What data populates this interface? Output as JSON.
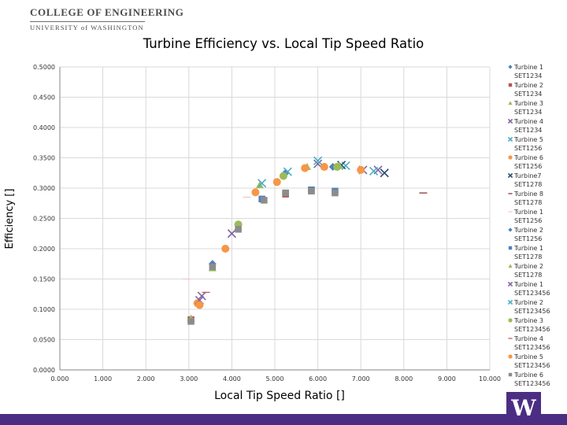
{
  "header": {
    "college": "COLLEGE OF ENGINEERING",
    "university": "UNIVERSITY of WASHINGTON"
  },
  "badge": {
    "letter": "W"
  },
  "chart_data": {
    "type": "scatter",
    "title": "Turbine Efficiency vs. Local Tip Speed Ratio",
    "xlabel": "Local Tip Speed Ratio []",
    "ylabel": "Efficiency []",
    "xlim": [
      0,
      10
    ],
    "ylim": [
      0,
      0.5
    ],
    "x_ticks": [
      "0.000",
      "1.000",
      "2.000",
      "3.000",
      "4.000",
      "5.000",
      "6.000",
      "7.000",
      "8.000",
      "9.000",
      "10.000"
    ],
    "y_ticks": [
      "0.0000",
      "0.0500",
      "0.1000",
      "0.1500",
      "0.2000",
      "0.2500",
      "0.3000",
      "0.3500",
      "0.4000",
      "0.4500",
      "0.5000"
    ],
    "grid": true,
    "legend_position": "right",
    "series": [
      {
        "name": "Turbine 1 SET1234",
        "color": "#4f81bd",
        "marker": "diamond",
        "points": [
          [
            4.15,
            0.24
          ],
          [
            5.25,
            0.325
          ],
          [
            6.35,
            0.335
          ]
        ]
      },
      {
        "name": "Turbine 2 SET1234",
        "color": "#c0504d",
        "marker": "square",
        "points": [
          [
            3.05,
            0.083
          ],
          [
            5.25,
            0.29
          ],
          [
            5.85,
            0.297
          ]
        ]
      },
      {
        "name": "Turbine 3 SET1234",
        "color": "#9bbb59",
        "marker": "triangle",
        "points": [
          [
            3.55,
            0.168
          ],
          [
            4.65,
            0.305
          ],
          [
            5.75,
            0.335
          ]
        ]
      },
      {
        "name": "Turbine 4 SET1234",
        "color": "#8064a2",
        "marker": "x",
        "points": [
          [
            3.3,
            0.122
          ],
          [
            4.0,
            0.225
          ],
          [
            6.0,
            0.34
          ],
          [
            7.4,
            0.33
          ]
        ]
      },
      {
        "name": "Turbine 5 SET1256",
        "color": "#4bacc6",
        "marker": "x",
        "points": [
          [
            4.7,
            0.308
          ],
          [
            5.3,
            0.327
          ],
          [
            6.65,
            0.337
          ],
          [
            7.3,
            0.328
          ]
        ]
      },
      {
        "name": "Turbine 6 SET1256",
        "color": "#f79646",
        "marker": "circle",
        "points": [
          [
            3.2,
            0.11
          ],
          [
            5.05,
            0.31
          ],
          [
            6.15,
            0.335
          ]
        ]
      },
      {
        "name": "Turbine7 SET1278",
        "color": "#2c4d75",
        "marker": "x",
        "points": [
          [
            6.55,
            0.338
          ],
          [
            7.55,
            0.325
          ]
        ]
      },
      {
        "name": "Turbine 8 SET1278",
        "color": "#772c2a",
        "marker": "dash",
        "points": [
          [
            8.45,
            0.292
          ]
        ]
      },
      {
        "name": "Turbine 1 SET1256",
        "color": "#f2c4c3",
        "marker": "dash",
        "points": [
          [
            2.95,
            0.15
          ],
          [
            4.35,
            0.285
          ]
        ]
      },
      {
        "name": "Turbine 2 SET1256",
        "color": "#4f81bd",
        "marker": "diamond",
        "points": [
          [
            3.55,
            0.175
          ]
        ]
      },
      {
        "name": "Turbine 1 SET1278",
        "color": "#4f81bd",
        "marker": "square",
        "points": [
          [
            4.7,
            0.282
          ],
          [
            5.25,
            0.292
          ],
          [
            5.85,
            0.297
          ],
          [
            6.4,
            0.295
          ]
        ]
      },
      {
        "name": "Turbine 2 SET1278",
        "color": "#9bbb59",
        "marker": "triangle",
        "points": [
          [
            3.05,
            0.085
          ],
          [
            4.15,
            0.236
          ],
          [
            6.5,
            0.337
          ]
        ]
      },
      {
        "name": "Turbine 1 SET123456",
        "color": "#8064a2",
        "marker": "x",
        "points": [
          [
            3.25,
            0.115
          ],
          [
            7.05,
            0.33
          ]
        ]
      },
      {
        "name": "Turbine 2 SET123456",
        "color": "#4bacc6",
        "marker": "x",
        "points": [
          [
            6.0,
            0.345
          ]
        ]
      },
      {
        "name": "Turbine 3 SET123456",
        "color": "#9bbb59",
        "marker": "circle",
        "points": [
          [
            4.15,
            0.24
          ],
          [
            5.2,
            0.32
          ],
          [
            6.45,
            0.335
          ]
        ]
      },
      {
        "name": "Turbine 4 SET123456",
        "color": "#c0504d",
        "marker": "dash",
        "points": [
          [
            3.4,
            0.128
          ]
        ]
      },
      {
        "name": "Turbine 5 SET123456",
        "color": "#f79646",
        "marker": "circle",
        "points": [
          [
            3.25,
            0.107
          ],
          [
            3.85,
            0.2
          ],
          [
            4.55,
            0.293
          ],
          [
            5.7,
            0.333
          ],
          [
            7.0,
            0.33
          ]
        ]
      },
      {
        "name": "Turbine 6 SET123456",
        "color": "#8c8c8c",
        "marker": "square",
        "points": [
          [
            3.05,
            0.08
          ],
          [
            3.55,
            0.17
          ],
          [
            4.15,
            0.232
          ],
          [
            4.75,
            0.28
          ],
          [
            5.25,
            0.292
          ],
          [
            5.85,
            0.295
          ],
          [
            6.4,
            0.292
          ]
        ]
      }
    ]
  }
}
